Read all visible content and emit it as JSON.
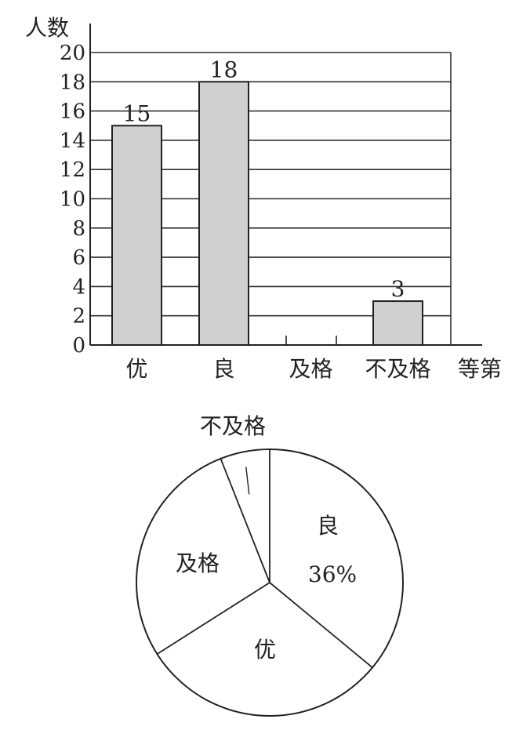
{
  "chart_data": [
    {
      "type": "bar",
      "ylabel": "人数",
      "xlabel": "等第",
      "categories": [
        "优",
        "良",
        "及格",
        "不及格"
      ],
      "values": [
        15,
        18,
        null,
        3
      ],
      "data_labels": [
        "15",
        "18",
        "",
        "3"
      ],
      "ylim": [
        0,
        20
      ],
      "yticks": [
        "0",
        "2",
        "4",
        "6",
        "8",
        "10",
        "12",
        "14",
        "16",
        "18",
        "20"
      ],
      "grid": true,
      "bar_color": "#d0d0d0"
    },
    {
      "type": "pie",
      "categories": [
        "良",
        "优",
        "及格",
        "不及格"
      ],
      "values": [
        36,
        30,
        28,
        6
      ],
      "labels": [
        "良",
        "优",
        "及格",
        "不及格"
      ],
      "percent_labels": [
        "36%",
        "",
        "",
        ""
      ]
    }
  ]
}
